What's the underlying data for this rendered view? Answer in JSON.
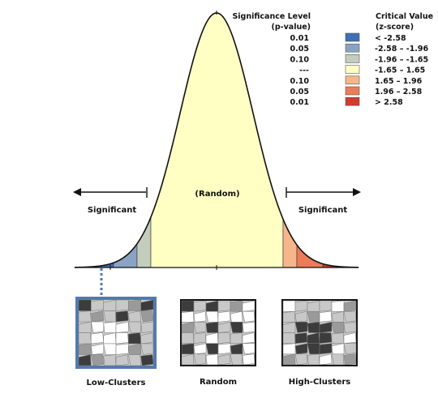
{
  "legend": {
    "heading_p_line1": "Significance Level",
    "heading_p_line2": "(p-value)",
    "heading_z_line1": "Critical Value",
    "heading_z_line2": "(z-score)",
    "rows": [
      {
        "p": "0.01",
        "z": "< -2.58",
        "color": "#3f6fb5"
      },
      {
        "p": "0.05",
        "z": "-2.58 – -1.96",
        "color": "#8aa3c3"
      },
      {
        "p": "0.10",
        "z": "-1.96 – -1.65",
        "color": "#c3cdbd"
      },
      {
        "p": "---",
        "z": "-1.65 – 1.65",
        "color": "#ffffc4"
      },
      {
        "p": "0.10",
        "z": "1.65 – 1.96",
        "color": "#f6b689"
      },
      {
        "p": "0.05",
        "z": "1.96 – 2.58",
        "color": "#ec7b58"
      },
      {
        "p": "0.01",
        "z": "> 2.58",
        "color": "#d43a2b"
      }
    ]
  },
  "curve_labels": {
    "left_significant": "Significant",
    "right_significant": "Significant",
    "center_random": "(Random)"
  },
  "maps": [
    {
      "label": "Low-Clusters",
      "selected": true
    },
    {
      "label": "Random",
      "selected": false
    },
    {
      "label": "High-Clusters",
      "selected": false
    }
  ],
  "colors": {
    "curve": "#111111",
    "selected_frame": "#5478b0",
    "map_dark": "#3c3c3c",
    "map_mid": "#9a9a9a",
    "map_light": "#c8c8c8",
    "map_white": "#ffffff"
  }
}
